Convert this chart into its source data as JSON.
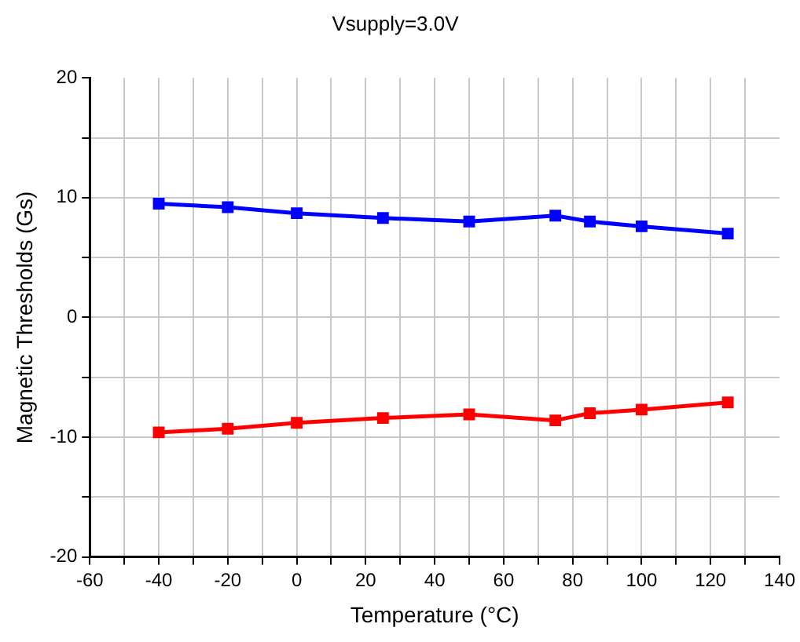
{
  "chart_data": {
    "type": "line",
    "title": "Vsupply=3.0V",
    "xlabel": "Temperature (°C)",
    "ylabel": "Magnetic Thresholds (Gs)",
    "x": [
      -40,
      -20,
      0,
      25,
      50,
      75,
      85,
      100,
      125
    ],
    "series": [
      {
        "color": "#ff0000",
        "values": [
          -9.6,
          -9.3,
          -8.8,
          -8.4,
          -8.1,
          -8.6,
          -8.0,
          -7.7,
          -7.1
        ]
      },
      {
        "color": "#0000ff",
        "values": [
          9.5,
          9.2,
          8.7,
          8.3,
          8.0,
          8.5,
          8.0,
          7.6,
          7.0
        ]
      }
    ],
    "xlim": [
      -60,
      140
    ],
    "xticks": [
      -60,
      {
        "value": -50,
        "label": null
      },
      -40,
      {
        "value": -30,
        "label": null
      },
      -20,
      {
        "value": -10,
        "label": null
      },
      0,
      {
        "value": 10,
        "label": null
      },
      20,
      {
        "value": 30,
        "label": null
      },
      40,
      {
        "value": 50,
        "label": null
      },
      60,
      {
        "value": 70,
        "label": null
      },
      80,
      {
        "value": 90,
        "label": null
      },
      100,
      {
        "value": 110,
        "label": null
      },
      120,
      {
        "value": 130,
        "label": null
      },
      140
    ],
    "ylim": [
      -20,
      20
    ],
    "yticks": [
      -20,
      {
        "value": -15,
        "label": null
      },
      -10,
      {
        "value": -5,
        "label": null
      },
      0,
      {
        "value": 5,
        "label": null
      },
      10,
      {
        "value": 15,
        "label": null
      },
      20
    ],
    "grid": true,
    "marker": "square",
    "line_style": "solid",
    "legend": false
  }
}
